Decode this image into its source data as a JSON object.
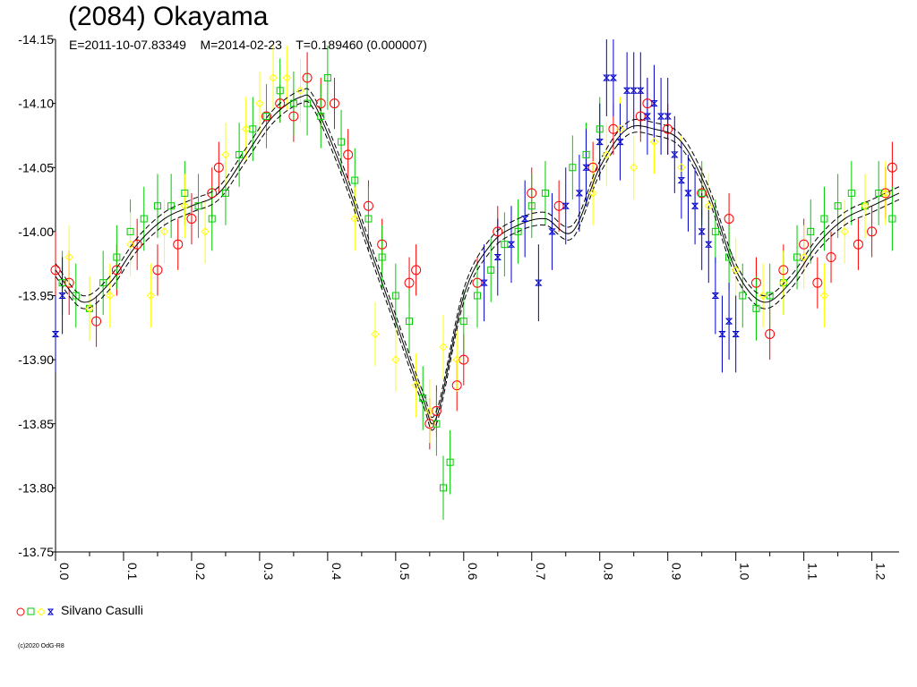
{
  "chart_data": {
    "type": "scatter",
    "title": "(2084) Okayama",
    "subtitle": "E=2011-10-07.83349    M=2014-02-23    T=0.189460 (0.000007)",
    "copyright": "(c)2020 OdG-R8",
    "xlim": [
      0.0,
      1.24
    ],
    "ylim": [
      -14.15,
      -13.75
    ],
    "y_inverted": true,
    "xticks": [
      0.0,
      0.1,
      0.2,
      0.3,
      0.4,
      0.5,
      0.6,
      0.7,
      0.8,
      0.9,
      1.0,
      1.1,
      1.2
    ],
    "xtick_labels": [
      "0.0",
      "0.1",
      "0.2",
      "0.3",
      "0.4",
      "0.5",
      "0.6",
      "0.7",
      "0.8",
      "0.9",
      "1.0",
      "1.1",
      "1.2"
    ],
    "yticks": [
      -14.15,
      -14.1,
      -14.05,
      -14.0,
      -13.95,
      -13.9,
      -13.85,
      -13.8,
      -13.75
    ],
    "ytick_labels": [
      "-14.15",
      "-14.10",
      "-14.05",
      "-14.00",
      "-13.95",
      "-13.90",
      "-13.85",
      "-13.80",
      "-13.75"
    ],
    "grid": false,
    "legend_position": "bottom-left",
    "legend_label": "Silvano Casulli",
    "fit_curve": {
      "x": [
        0.0,
        0.04,
        0.08,
        0.12,
        0.16,
        0.2,
        0.24,
        0.28,
        0.32,
        0.36,
        0.38,
        0.42,
        0.46,
        0.5,
        0.54,
        0.56,
        0.6,
        0.64,
        0.68,
        0.72,
        0.76,
        0.8,
        0.84,
        0.88,
        0.92,
        0.96,
        1.0,
        1.04,
        1.08,
        1.12,
        1.16,
        1.2,
        1.24
      ],
      "y": [
        -13.97,
        -13.945,
        -13.96,
        -13.99,
        -14.01,
        -14.02,
        -14.03,
        -14.06,
        -14.09,
        -14.105,
        -14.1,
        -14.05,
        -13.99,
        -13.93,
        -13.87,
        -13.855,
        -13.95,
        -13.99,
        -14.005,
        -14.01,
        -14.0,
        -14.05,
        -14.08,
        -14.08,
        -14.07,
        -14.03,
        -13.97,
        -13.945,
        -13.96,
        -13.99,
        -14.01,
        -14.02,
        -14.03
      ]
    },
    "fit_offset": 0.005,
    "series": [
      {
        "color": "#ff0000",
        "marker": "circle",
        "x": [
          0.0,
          0.02,
          0.06,
          0.09,
          0.12,
          0.15,
          0.18,
          0.2,
          0.23,
          0.24,
          0.31,
          0.33,
          0.35,
          0.37,
          0.39,
          0.41,
          0.43,
          0.46,
          0.48,
          0.52,
          0.53,
          0.55,
          0.56,
          0.59,
          0.6,
          0.62,
          0.65,
          0.7,
          0.74,
          0.79,
          0.82,
          0.86,
          0.87,
          0.9,
          0.95,
          0.99,
          1.03,
          1.05,
          1.07,
          1.1,
          1.12,
          1.14,
          1.18,
          1.2,
          1.22,
          1.23
        ],
        "y": [
          -13.97,
          -13.96,
          -13.93,
          -13.97,
          -13.99,
          -13.97,
          -13.99,
          -14.01,
          -14.03,
          -14.05,
          -14.09,
          -14.1,
          -14.09,
          -14.12,
          -14.1,
          -14.1,
          -14.06,
          -14.02,
          -13.99,
          -13.96,
          -13.97,
          -13.85,
          -13.86,
          -13.88,
          -13.9,
          -13.96,
          -14.0,
          -14.03,
          -14.02,
          -14.05,
          -14.08,
          -14.09,
          -14.1,
          -14.08,
          -14.03,
          -14.01,
          -13.96,
          -13.92,
          -13.97,
          -13.99,
          -13.96,
          -13.98,
          -13.99,
          -14.0,
          -14.03,
          -14.05
        ],
        "err": [
          0.03,
          0.025,
          0.02,
          0.02,
          0.02,
          0.02,
          0.02,
          0.02,
          0.02,
          0.02,
          0.02,
          0.015,
          0.02,
          0.02,
          0.02,
          0.02,
          0.02,
          0.02,
          0.02,
          0.02,
          0.02,
          0.02,
          0.02,
          0.02,
          0.02,
          0.02,
          0.02,
          0.02,
          0.02,
          0.02,
          0.02,
          0.02,
          0.02,
          0.02,
          0.02,
          0.02,
          0.02,
          0.02,
          0.02,
          0.02,
          0.02,
          0.02,
          0.02,
          0.02,
          0.02,
          0.02
        ]
      },
      {
        "color": "#00cc00",
        "marker": "square",
        "x": [
          0.01,
          0.03,
          0.05,
          0.07,
          0.09,
          0.11,
          0.13,
          0.15,
          0.17,
          0.19,
          0.21,
          0.23,
          0.25,
          0.27,
          0.29,
          0.31,
          0.33,
          0.35,
          0.37,
          0.39,
          0.4,
          0.42,
          0.44,
          0.46,
          0.48,
          0.5,
          0.52,
          0.54,
          0.56,
          0.57,
          0.58,
          0.6,
          0.62,
          0.64,
          0.66,
          0.68,
          0.7,
          0.72,
          0.76,
          0.78,
          0.8,
          0.95,
          0.97,
          0.99,
          1.01,
          1.03,
          1.05,
          1.07,
          1.09,
          1.11,
          1.13,
          1.15,
          1.17,
          1.19,
          1.21,
          1.23
        ],
        "y": [
          -13.96,
          -13.95,
          -13.94,
          -13.96,
          -13.98,
          -14.0,
          -14.01,
          -14.02,
          -14.02,
          -14.03,
          -14.02,
          -14.01,
          -14.03,
          -14.06,
          -14.08,
          -14.09,
          -14.11,
          -14.1,
          -14.1,
          -14.09,
          -14.12,
          -14.07,
          -14.04,
          -14.01,
          -13.98,
          -13.95,
          -13.93,
          -13.87,
          -13.85,
          -13.8,
          -13.82,
          -13.93,
          -13.95,
          -13.97,
          -13.99,
          -14.0,
          -14.02,
          -14.03,
          -14.05,
          -14.06,
          -14.08,
          -14.03,
          -14.0,
          -13.98,
          -13.95,
          -13.94,
          -13.95,
          -13.96,
          -13.98,
          -14.0,
          -14.01,
          -14.02,
          -14.03,
          -14.02,
          -14.03,
          -14.01
        ],
        "err": [
          0.025,
          0.025,
          0.025,
          0.025,
          0.025,
          0.025,
          0.025,
          0.025,
          0.025,
          0.025,
          0.025,
          0.025,
          0.025,
          0.025,
          0.025,
          0.025,
          0.025,
          0.025,
          0.025,
          0.025,
          0.025,
          0.025,
          0.025,
          0.025,
          0.025,
          0.025,
          0.025,
          0.025,
          0.025,
          0.025,
          0.025,
          0.025,
          0.025,
          0.025,
          0.025,
          0.025,
          0.025,
          0.025,
          0.025,
          0.025,
          0.025,
          0.025,
          0.025,
          0.025,
          0.025,
          0.025,
          0.025,
          0.025,
          0.025,
          0.025,
          0.025,
          0.025,
          0.025,
          0.025,
          0.025,
          0.025
        ]
      },
      {
        "color": "#ffff00",
        "marker": "diamond",
        "x": [
          0.02,
          0.05,
          0.08,
          0.11,
          0.14,
          0.16,
          0.19,
          0.22,
          0.25,
          0.28,
          0.3,
          0.32,
          0.34,
          0.36,
          0.44,
          0.47,
          0.5,
          0.53,
          0.55,
          0.57,
          0.59,
          0.79,
          0.81,
          0.83,
          0.85,
          0.88,
          0.92,
          0.96,
          1.0,
          1.04,
          1.07,
          1.1,
          1.13,
          1.16,
          1.19,
          1.22
        ],
        "y": [
          -13.98,
          -13.94,
          -13.95,
          -13.99,
          -13.95,
          -14.0,
          -14.02,
          -14.0,
          -14.06,
          -14.08,
          -14.1,
          -14.12,
          -14.12,
          -14.11,
          -14.01,
          -13.92,
          -13.9,
          -13.88,
          -13.86,
          -13.91,
          -13.9,
          -14.03,
          -14.06,
          -14.08,
          -14.05,
          -14.07,
          -14.05,
          -14.02,
          -13.97,
          -13.95,
          -13.96,
          -13.98,
          -13.95,
          -14.0,
          -14.02,
          -14.03
        ],
        "err": [
          0.025,
          0.025,
          0.025,
          0.025,
          0.025,
          0.025,
          0.025,
          0.025,
          0.025,
          0.025,
          0.025,
          0.025,
          0.025,
          0.025,
          0.025,
          0.025,
          0.025,
          0.025,
          0.025,
          0.025,
          0.025,
          0.025,
          0.025,
          0.025,
          0.025,
          0.025,
          0.025,
          0.025,
          0.025,
          0.025,
          0.025,
          0.025,
          0.025,
          0.025,
          0.025,
          0.025
        ]
      },
      {
        "color": "#0000cc",
        "marker": "hourglass",
        "x": [
          0.0,
          0.01,
          0.63,
          0.65,
          0.67,
          0.69,
          0.71,
          0.73,
          0.75,
          0.77,
          0.78,
          0.8,
          0.81,
          0.82,
          0.83,
          0.84,
          0.85,
          0.86,
          0.87,
          0.88,
          0.89,
          0.9,
          0.91,
          0.92,
          0.93,
          0.94,
          0.95,
          0.96,
          0.97,
          0.98,
          0.99,
          1.0
        ],
        "y": [
          -13.92,
          -13.95,
          -13.96,
          -13.98,
          -13.99,
          -14.01,
          -13.96,
          -14.0,
          -14.02,
          -14.03,
          -14.05,
          -14.07,
          -14.12,
          -14.12,
          -14.07,
          -14.11,
          -14.11,
          -14.11,
          -14.09,
          -14.1,
          -14.09,
          -14.09,
          -14.06,
          -14.04,
          -14.03,
          -14.02,
          -14.0,
          -13.99,
          -13.95,
          -13.92,
          -13.93,
          -13.92
        ],
        "err": [
          0.03,
          0.03,
          0.03,
          0.03,
          0.03,
          0.03,
          0.03,
          0.03,
          0.03,
          0.03,
          0.03,
          0.03,
          0.03,
          0.03,
          0.03,
          0.03,
          0.03,
          0.03,
          0.03,
          0.03,
          0.03,
          0.03,
          0.03,
          0.03,
          0.03,
          0.03,
          0.03,
          0.03,
          0.03,
          0.03,
          0.03,
          0.03
        ]
      }
    ]
  }
}
